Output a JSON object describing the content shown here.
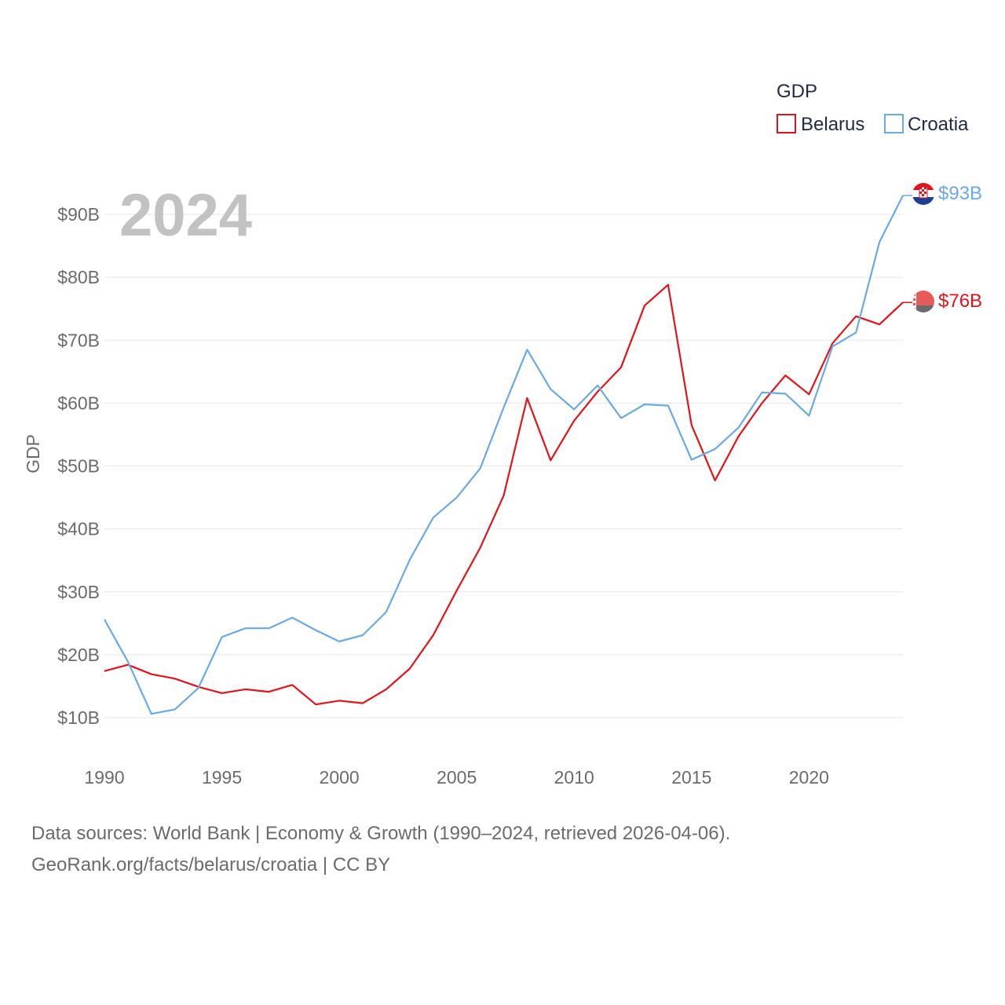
{
  "chart_data": {
    "type": "line",
    "title": "",
    "year_label": "2024",
    "ylabel": "GDP",
    "xlabel": "",
    "xlim": [
      1990,
      2024
    ],
    "ylim": [
      10,
      93
    ],
    "x_ticks": [
      1990,
      1995,
      2000,
      2005,
      2010,
      2015,
      2020
    ],
    "x_tick_labels": [
      "1990",
      "1995",
      "2000",
      "2005",
      "2010",
      "2015",
      "2020"
    ],
    "y_ticks": [
      10,
      20,
      30,
      40,
      50,
      60,
      70,
      80,
      90
    ],
    "y_tick_labels": [
      "$10B",
      "$20B",
      "$30B",
      "$40B",
      "$50B",
      "$60B",
      "$70B",
      "$80B",
      "$90B"
    ],
    "legend": {
      "title": "GDP",
      "placement": "top-right"
    },
    "x": [
      1990,
      1991,
      1992,
      1993,
      1994,
      1995,
      1996,
      1997,
      1998,
      1999,
      2000,
      2001,
      2002,
      2003,
      2004,
      2005,
      2006,
      2007,
      2008,
      2009,
      2010,
      2011,
      2012,
      2013,
      2014,
      2015,
      2016,
      2017,
      2018,
      2019,
      2020,
      2021,
      2022,
      2023,
      2024
    ],
    "series": [
      {
        "name": "Belarus",
        "color": "#e3131b",
        "end_label": "$76B",
        "values": [
          17.4,
          18.4,
          16.9,
          16.2,
          14.9,
          13.9,
          14.5,
          14.1,
          15.2,
          12.1,
          12.7,
          12.3,
          14.5,
          17.8,
          23.1,
          30.2,
          37.0,
          45.3,
          60.8,
          50.9,
          57.2,
          61.8,
          65.7,
          75.5,
          78.8,
          56.5,
          47.7,
          54.7,
          60.0,
          64.4,
          61.4,
          69.5,
          73.8,
          72.5,
          76.0
        ]
      },
      {
        "name": "Croatia",
        "color": "#6aaae4",
        "end_label": "$93B",
        "values": [
          25.6,
          18.9,
          10.6,
          11.3,
          14.7,
          22.8,
          24.2,
          24.2,
          25.9,
          23.9,
          22.1,
          23.1,
          26.8,
          35.1,
          41.8,
          45.0,
          49.6,
          59.3,
          68.5,
          62.2,
          59.0,
          62.8,
          57.6,
          59.8,
          59.6,
          51.0,
          52.7,
          56.1,
          61.7,
          61.5,
          58.0,
          69.0,
          71.2,
          85.6,
          93.0
        ]
      }
    ]
  },
  "source": {
    "line1": "Data sources: World Bank | Economy & Growth (1990–2024, retrieved 2026-04-06).",
    "line2": "GeoRank.org/facts/belarus/croatia | CC BY"
  }
}
